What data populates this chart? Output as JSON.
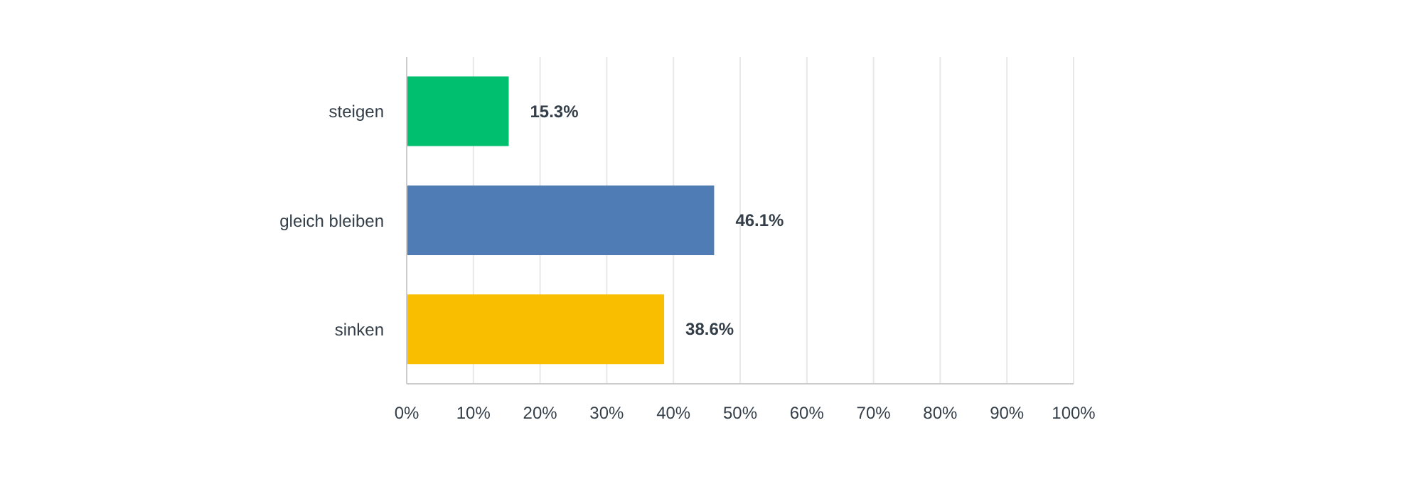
{
  "chart_data": {
    "type": "bar",
    "orientation": "horizontal",
    "categories": [
      "steigen",
      "gleich bleiben",
      "sinken"
    ],
    "values": [
      15.3,
      46.1,
      38.6
    ],
    "colors": [
      "#00bf6f",
      "#507cb6",
      "#f9be00"
    ],
    "value_labels": [
      "15.3%",
      "46.1%",
      "38.6%"
    ],
    "xlim": [
      0,
      100
    ],
    "xticks": [
      {
        "value": 0,
        "label": "0%"
      },
      {
        "value": 10,
        "label": "10%"
      },
      {
        "value": 20,
        "label": "20%"
      },
      {
        "value": 30,
        "label": "30%"
      },
      {
        "value": 40,
        "label": "40%"
      },
      {
        "value": 50,
        "label": "50%"
      },
      {
        "value": 60,
        "label": "60%"
      },
      {
        "value": 70,
        "label": "70%"
      },
      {
        "value": 80,
        "label": "80%"
      },
      {
        "value": 90,
        "label": "90%"
      },
      {
        "value": 100,
        "label": "100%"
      }
    ],
    "grid": "x"
  }
}
